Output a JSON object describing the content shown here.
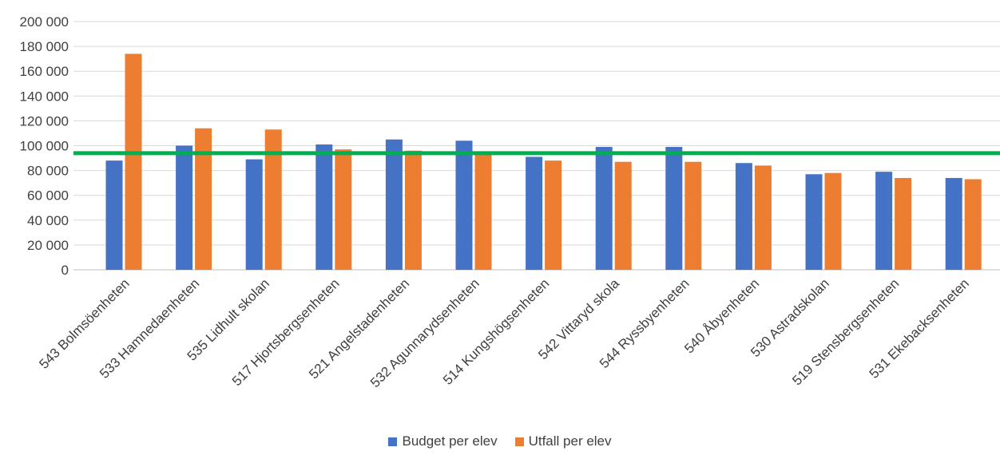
{
  "chart_data": {
    "type": "bar",
    "categories": [
      "543 Bolmsöenheten",
      "533 Hamnedaenheten",
      "535 Lidhult skolan",
      "517 Hjortsbergsenheten",
      "521 Angelstadenheten",
      "532 Agunnarydsenheten",
      "514 Kungshögsenheten",
      "542 Vittaryd skola",
      "544 Ryssbyenheten",
      "540 Åbyenheten",
      "530 Astradskolan",
      "519 Stensbergsenheten",
      "531 Ekebacksenheten"
    ],
    "series": [
      {
        "name": "Budget per elev",
        "color": "#4472c4",
        "values": [
          88000,
          100000,
          89000,
          101000,
          105000,
          104000,
          91000,
          99000,
          99000,
          86000,
          77000,
          79000,
          74000
        ]
      },
      {
        "name": "Utfall per elev",
        "color": "#ed7d31",
        "values": [
          174000,
          114000,
          113000,
          97000,
          96000,
          94000,
          88000,
          87000,
          87000,
          84000,
          78000,
          74000,
          73000
        ]
      }
    ],
    "reference_line": {
      "value": 94000,
      "color": "#00b050"
    },
    "y_ticks": [
      "0",
      "20 000",
      "40 000",
      "60 000",
      "80 000",
      "100 000",
      "120 000",
      "140 000",
      "160 000",
      "180 000",
      "200 000"
    ],
    "ylim": [
      0,
      200000
    ],
    "grid": true,
    "legend_position": "bottom",
    "title": "",
    "xlabel": "",
    "ylabel": ""
  }
}
